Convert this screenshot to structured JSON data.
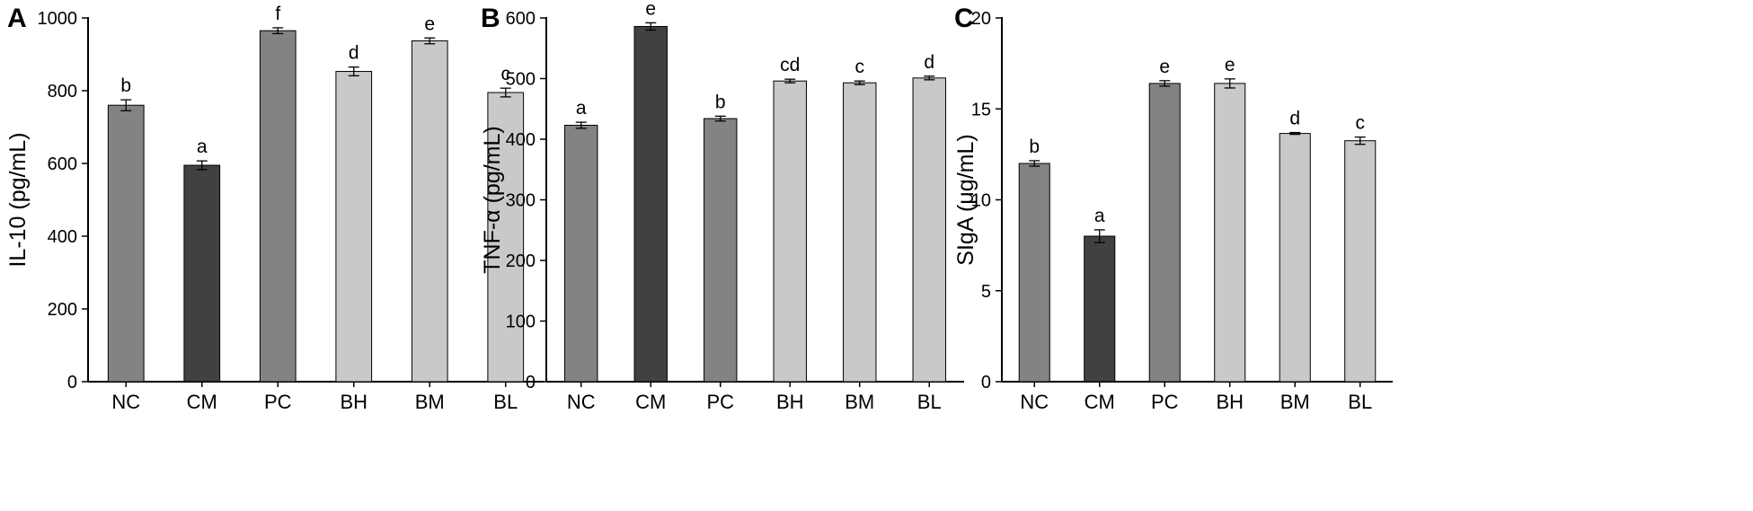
{
  "chart_data": [
    {
      "type": "bar",
      "panel": "A",
      "categories": [
        "NC",
        "CM",
        "PC",
        "BH",
        "BM",
        "BL"
      ],
      "values": [
        760,
        595,
        965,
        853,
        937,
        795
      ],
      "errors": [
        15,
        12,
        8,
        12,
        8,
        12
      ],
      "significance": [
        "b",
        "a",
        "f",
        "d",
        "e",
        "c"
      ],
      "colors": [
        "#838383",
        "#414141",
        "#838383",
        "#c9c9c9",
        "#c9c9c9",
        "#c9c9c9"
      ],
      "ylabel": "IL-10 (pg/mL)",
      "ylim": [
        0,
        1000
      ],
      "yticks": [
        0,
        200,
        400,
        600,
        800,
        1000
      ]
    },
    {
      "type": "bar",
      "panel": "B",
      "categories": [
        "NC",
        "CM",
        "PC",
        "BH",
        "BM",
        "BL"
      ],
      "values": [
        423,
        586,
        434,
        496,
        493,
        501
      ],
      "errors": [
        5,
        6,
        4,
        3,
        3,
        3
      ],
      "significance": [
        "a",
        "e",
        "b",
        "cd",
        "c",
        "d"
      ],
      "colors": [
        "#838383",
        "#414141",
        "#838383",
        "#c9c9c9",
        "#c9c9c9",
        "#c9c9c9"
      ],
      "ylabel": "TNF-α (pg/mL)",
      "ylim": [
        0,
        600
      ],
      "yticks": [
        0,
        100,
        200,
        300,
        400,
        500,
        600
      ]
    },
    {
      "type": "bar",
      "panel": "C",
      "categories": [
        "NC",
        "CM",
        "PC",
        "BH",
        "BM",
        "BL"
      ],
      "values": [
        12.0,
        8.0,
        16.4,
        16.4,
        13.65,
        13.25
      ],
      "errors": [
        0.15,
        0.35,
        0.15,
        0.25,
        0.05,
        0.2
      ],
      "significance": [
        "b",
        "a",
        "e",
        "e",
        "d",
        "c"
      ],
      "colors": [
        "#838383",
        "#414141",
        "#838383",
        "#c9c9c9",
        "#c9c9c9",
        "#c9c9c9"
      ],
      "ylabel": "SIgA (μg/mL)",
      "ylim": [
        0,
        20
      ],
      "yticks": [
        0,
        5,
        10,
        15,
        20
      ]
    }
  ]
}
